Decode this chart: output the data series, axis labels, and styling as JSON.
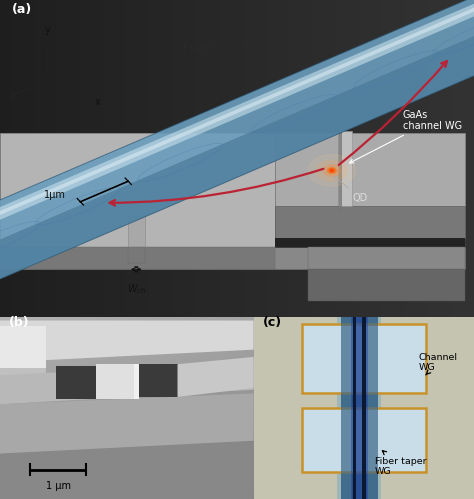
{
  "fig_width": 4.74,
  "fig_height": 4.99,
  "dpi": 100,
  "bg_color": "#000000",
  "panel_a": {
    "label": "(a)",
    "substrate_top_color": "#b0b0b0",
    "substrate_side_color": "#888888",
    "substrate_dark_color": "#6a6a6a",
    "recess_color": "#222222",
    "recess_right_color": "#1a1a1a",
    "channel_wg_top": "#a8a8a8",
    "channel_wg_side": "#787878",
    "fiber_mid_color": "#7aafc8",
    "fiber_light_color": "#b8d4e4",
    "fiber_highlight": "#dceef8",
    "fiber_dark_color": "#4a7090",
    "fiber_edge_color": "#3a5f7a",
    "fiber_ring_color": "#4a7090",
    "arrow_color": "#b82244",
    "qd_color": "#ff7733",
    "qd_glow1": "#ffaa55",
    "qd_glow2": "#ff8844",
    "axis_color": "#222222",
    "text_dark": "#222222",
    "text_white": "#ffffff",
    "fiber_label": "Fiber taper WG",
    "channel_label": "GaAs\nchannel WG",
    "qd_label": "QD",
    "dim_label": "1μm",
    "wch_label": "$W_{ch}$",
    "bg_top": "#2a2a2a",
    "bg_bot": "#111111"
  },
  "panel_b": {
    "label": "(b)",
    "scale_label": "1 μm"
  },
  "panel_c": {
    "label": "(c)",
    "bg_color": "#c4c4b0",
    "block_fill": "#c8dde8",
    "block_edge": "#c8922a",
    "fiber_dark": "#1a2a4a",
    "fiber_mid": "#3355aa",
    "fiber_light": "#7799cc",
    "channel_label": "Channel\nWG",
    "fiber_label": "Fiber taper\nWG"
  }
}
